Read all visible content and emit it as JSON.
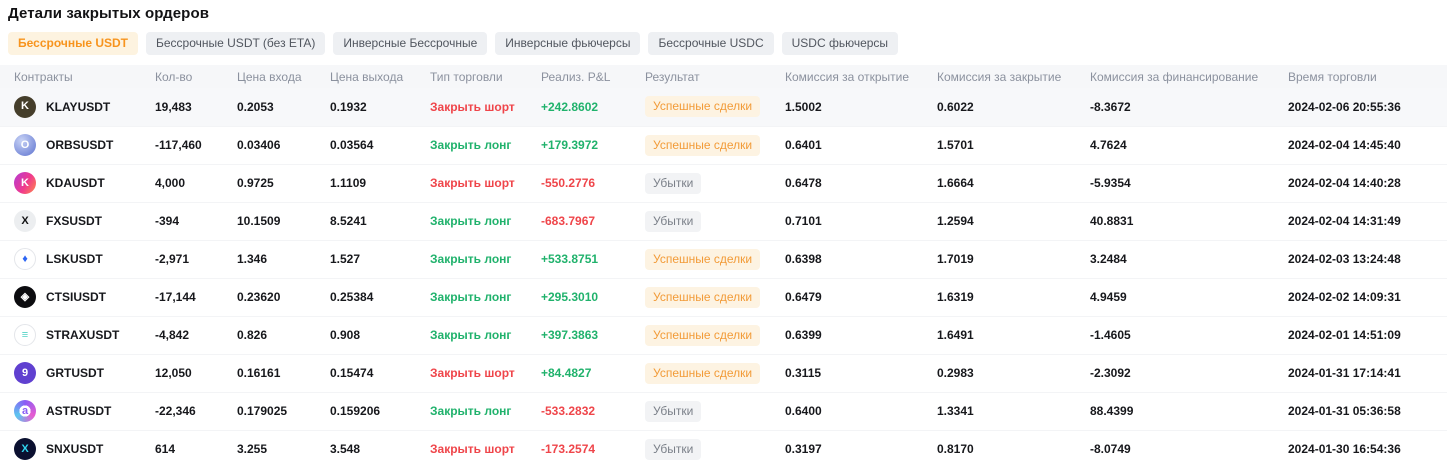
{
  "page": {
    "title": "Детали закрытых ордеров"
  },
  "colors": {
    "accent_orange": "#f7941e",
    "active_tab_bg": "#fdf3e0",
    "inactive_tab_bg": "#eef0f3",
    "red": "#ef454a",
    "green": "#20b26c",
    "badge_success_bg": "#fdf3e2",
    "badge_success_text": "#f29b38",
    "badge_loss_bg": "#f2f3f5",
    "badge_loss_text": "#7b8089",
    "header_bg": "#f6f7f9",
    "header_text": "#8b919e"
  },
  "tabs": [
    {
      "label": "Бессрочные USDT",
      "active": true
    },
    {
      "label": "Бессрочные USDT (без ETA)",
      "active": false
    },
    {
      "label": "Инверсные Бессрочные",
      "active": false
    },
    {
      "label": "Инверсные фьючерсы",
      "active": false
    },
    {
      "label": "Бессрочные USDC",
      "active": false
    },
    {
      "label": "USDC фьючерсы",
      "active": false
    }
  ],
  "table": {
    "columns": [
      "Контракты",
      "Кол-во",
      "Цена входа",
      "Цена выхода",
      "Тип торговли",
      "Реализ. P&L",
      "Результат",
      "Комиссия за открытие",
      "Комиссия за закрытие",
      "Комиссия за финансирование",
      "Время торговли"
    ],
    "rows": [
      {
        "contract": "KLAYUSDT",
        "icon": {
          "name": "klay-coin-icon",
          "bg": "#453e2b",
          "fg": "#ffffff",
          "glyph": "K"
        },
        "qty": "19,483",
        "entry": "0.2053",
        "exit": "0.1932",
        "trade_type": "Закрыть шорт",
        "trade_type_color": "red",
        "pnl": "+242.8602",
        "pnl_color": "green",
        "result": "Успешные сделки",
        "result_type": "success",
        "open_fee": "1.5002",
        "close_fee": "0.6022",
        "funding_fee": "-8.3672",
        "time": "2024-02-06 20:55:36",
        "hovered": true
      },
      {
        "contract": "ORBSUSDT",
        "icon": {
          "name": "orbs-coin-icon",
          "bg": "radial-gradient(circle at 35% 30%, #c7d2f5, #5d72cf)",
          "fg": "#ffffff",
          "glyph": "O"
        },
        "qty": "-117,460",
        "entry": "0.03406",
        "exit": "0.03564",
        "trade_type": "Закрыть лонг",
        "trade_type_color": "green",
        "pnl": "+179.3972",
        "pnl_color": "green",
        "result": "Успешные сделки",
        "result_type": "success",
        "open_fee": "0.6401",
        "close_fee": "1.5701",
        "funding_fee": "4.7624",
        "time": "2024-02-04 14:45:40",
        "hovered": false
      },
      {
        "contract": "KDAUSDT",
        "icon": {
          "name": "kda-coin-icon",
          "bg": "linear-gradient(120deg, #b43bd6, #f03a8d 55%, #ff8a4a)",
          "fg": "#ffffff",
          "glyph": "K"
        },
        "qty": "4,000",
        "entry": "0.9725",
        "exit": "1.1109",
        "trade_type": "Закрыть шорт",
        "trade_type_color": "red",
        "pnl": "-550.2776",
        "pnl_color": "red",
        "result": "Убытки",
        "result_type": "loss",
        "open_fee": "0.6478",
        "close_fee": "1.6664",
        "funding_fee": "-5.9354",
        "time": "2024-02-04 14:40:28",
        "hovered": false
      },
      {
        "contract": "FXSUSDT",
        "icon": {
          "name": "fxs-coin-icon",
          "bg": "#eceef0",
          "fg": "#121214",
          "glyph": "X"
        },
        "qty": "-394",
        "entry": "10.1509",
        "exit": "8.5241",
        "trade_type": "Закрыть лонг",
        "trade_type_color": "green",
        "pnl": "-683.7967",
        "pnl_color": "red",
        "result": "Убытки",
        "result_type": "loss",
        "open_fee": "0.7101",
        "close_fee": "1.2594",
        "funding_fee": "40.8831",
        "time": "2024-02-04 14:31:49",
        "hovered": false
      },
      {
        "contract": "LSKUSDT",
        "icon": {
          "name": "lsk-coin-icon",
          "bg": "#ffffff",
          "fg": "#2d66f4",
          "glyph": "♦",
          "border": "1px solid #e4e6ea"
        },
        "qty": "-2,971",
        "entry": "1.346",
        "exit": "1.527",
        "trade_type": "Закрыть лонг",
        "trade_type_color": "green",
        "pnl": "+533.8751",
        "pnl_color": "green",
        "result": "Успешные сделки",
        "result_type": "success",
        "open_fee": "0.6398",
        "close_fee": "1.7019",
        "funding_fee": "3.2484",
        "time": "2024-02-03 13:24:48",
        "hovered": false
      },
      {
        "contract": "CTSIUSDT",
        "icon": {
          "name": "ctsi-coin-icon",
          "bg": "#0c0c0f",
          "fg": "#ffffff",
          "glyph": "◈"
        },
        "qty": "-17,144",
        "entry": "0.23620",
        "exit": "0.25384",
        "trade_type": "Закрыть лонг",
        "trade_type_color": "green",
        "pnl": "+295.3010",
        "pnl_color": "green",
        "result": "Успешные сделки",
        "result_type": "success",
        "open_fee": "0.6479",
        "close_fee": "1.6319",
        "funding_fee": "4.9459",
        "time": "2024-02-02 14:09:31",
        "hovered": false
      },
      {
        "contract": "STRAXUSDT",
        "icon": {
          "name": "strax-coin-icon",
          "bg": "#ffffff",
          "fg": "#53d3c6",
          "glyph": "≡",
          "border": "1px solid #e4e6ea"
        },
        "qty": "-4,842",
        "entry": "0.826",
        "exit": "0.908",
        "trade_type": "Закрыть лонг",
        "trade_type_color": "green",
        "pnl": "+397.3863",
        "pnl_color": "green",
        "result": "Успешные сделки",
        "result_type": "success",
        "open_fee": "0.6399",
        "close_fee": "1.6491",
        "funding_fee": "-1.4605",
        "time": "2024-02-01 14:51:09",
        "hovered": false
      },
      {
        "contract": "GRTUSDT",
        "icon": {
          "name": "grt-coin-icon",
          "bg": "#6040d0",
          "fg": "#ffffff",
          "glyph": "9"
        },
        "qty": "12,050",
        "entry": "0.16161",
        "exit": "0.15474",
        "trade_type": "Закрыть шорт",
        "trade_type_color": "red",
        "pnl": "+84.4827",
        "pnl_color": "green",
        "result": "Успешные сделки",
        "result_type": "success",
        "open_fee": "0.3115",
        "close_fee": "0.2983",
        "funding_fee": "-2.3092",
        "time": "2024-01-31 17:14:41",
        "hovered": false
      },
      {
        "contract": "ASTRUSDT",
        "icon": {
          "name": "astr-coin-icon",
          "bg": "radial-gradient(circle at 50% 50%, #ffffff 36%, rgba(255,255,255,0) 37%), conic-gradient(#8a5cf5, #e85bd0, #5bc7f0, #8a5cf5)",
          "fg": "#8a5cf5",
          "glyph": "a"
        },
        "qty": "-22,346",
        "entry": "0.179025",
        "exit": "0.159206",
        "trade_type": "Закрыть лонг",
        "trade_type_color": "green",
        "pnl": "-533.2832",
        "pnl_color": "red",
        "result": "Убытки",
        "result_type": "loss",
        "open_fee": "0.6400",
        "close_fee": "1.3341",
        "funding_fee": "88.4399",
        "time": "2024-01-31 05:36:58",
        "hovered": false
      },
      {
        "contract": "SNXUSDT",
        "icon": {
          "name": "snx-coin-icon",
          "bg": "#0b1030",
          "fg": "#31d7f2",
          "glyph": "X"
        },
        "qty": "614",
        "entry": "3.255",
        "exit": "3.548",
        "trade_type": "Закрыть шорт",
        "trade_type_color": "red",
        "pnl": "-173.2574",
        "pnl_color": "red",
        "result": "Убытки",
        "result_type": "loss",
        "open_fee": "0.3197",
        "close_fee": "0.8170",
        "funding_fee": "-8.0749",
        "time": "2024-01-30 16:54:36",
        "hovered": false
      }
    ]
  }
}
